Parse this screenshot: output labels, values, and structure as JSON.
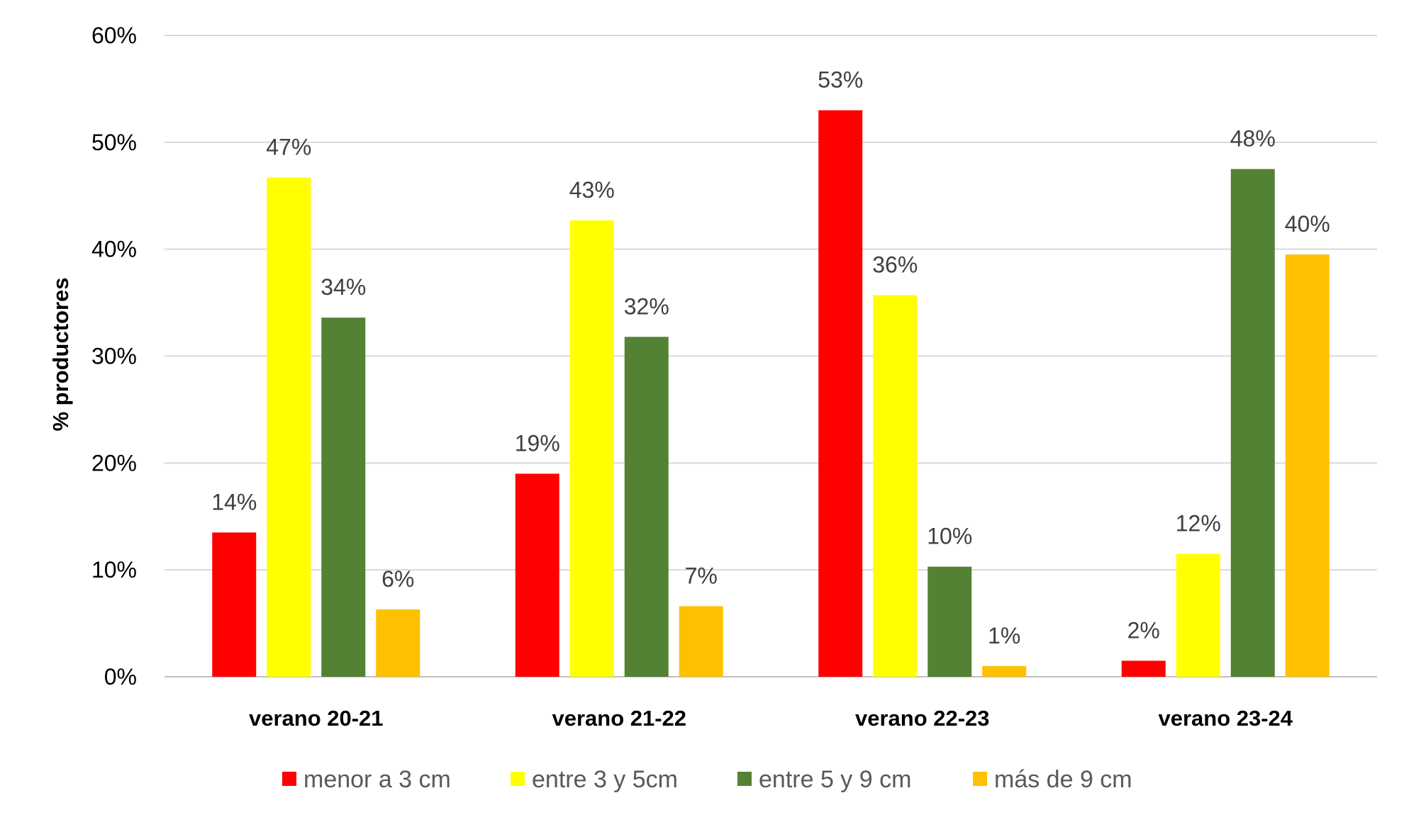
{
  "chart_data": {
    "type": "bar",
    "title": "",
    "xlabel": "",
    "ylabel": "% productores",
    "ylim": [
      0,
      60
    ],
    "yticks": [
      "0%",
      "10%",
      "20%",
      "30%",
      "40%",
      "50%",
      "60%"
    ],
    "yticks_values": [
      0,
      10,
      20,
      30,
      40,
      50,
      60
    ],
    "grid": true,
    "legend_position": "bottom",
    "categories": [
      "verano 20-21",
      "verano 21-22",
      "verano 22-23",
      "verano 23-24"
    ],
    "series": [
      {
        "name": "menor a 3 cm",
        "color": "#FF0000",
        "values": [
          13.5,
          19,
          53,
          1.5
        ],
        "labels": [
          "14%",
          "19%",
          "53%",
          "2%"
        ]
      },
      {
        "name": "entre 3 y 5cm",
        "color": "#FFFF00",
        "values": [
          46.7,
          42.7,
          35.7,
          11.5
        ],
        "labels": [
          "47%",
          "43%",
          "36%",
          "12%"
        ]
      },
      {
        "name": "entre 5 y 9 cm",
        "color": "#548235",
        "values": [
          33.6,
          31.8,
          10.3,
          47.5
        ],
        "labels": [
          "34%",
          "32%",
          "10%",
          "48%"
        ]
      },
      {
        "name": "más de 9 cm",
        "color": "#FFC000",
        "values": [
          6.3,
          6.6,
          1.0,
          39.5
        ],
        "labels": [
          "6%",
          "7%",
          "1%",
          "40%"
        ]
      }
    ]
  }
}
